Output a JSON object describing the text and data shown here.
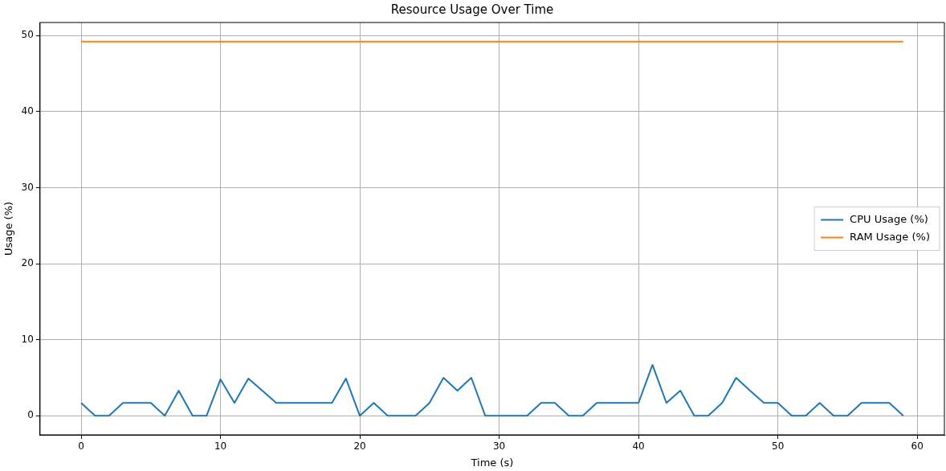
{
  "chart_data": {
    "type": "line",
    "title": "Resource Usage Over Time",
    "xlabel": "Time (s)",
    "ylabel": "Usage (%)",
    "x": [
      0,
      1,
      2,
      3,
      4,
      5,
      6,
      7,
      8,
      9,
      10,
      11,
      12,
      13,
      14,
      15,
      16,
      17,
      18,
      19,
      20,
      21,
      22,
      23,
      24,
      25,
      26,
      27,
      28,
      29,
      30,
      31,
      32,
      33,
      34,
      35,
      36,
      37,
      38,
      39,
      40,
      41,
      42,
      43,
      44,
      45,
      46,
      47,
      48,
      49,
      50,
      51,
      52,
      53,
      54,
      55,
      56,
      57,
      58,
      59
    ],
    "series": [
      {
        "name": "CPU Usage (%)",
        "color": "#1f77b4",
        "values": [
          1.7,
          0,
          0,
          1.7,
          1.7,
          1.7,
          0,
          3.3,
          0,
          0,
          4.8,
          1.7,
          4.9,
          3.3,
          1.7,
          1.7,
          1.7,
          1.7,
          1.7,
          4.9,
          0,
          1.7,
          0,
          0,
          0,
          1.7,
          5.0,
          3.3,
          5.0,
          0,
          0,
          0,
          0,
          1.7,
          1.7,
          0,
          0,
          1.7,
          1.7,
          1.7,
          1.7,
          6.7,
          1.7,
          3.3,
          0,
          0,
          1.7,
          5.0,
          3.3,
          1.7,
          1.7,
          0,
          0,
          1.7,
          0,
          0,
          1.7,
          1.7,
          1.7,
          0
        ]
      },
      {
        "name": "RAM Usage (%)",
        "color": "#ff7f0e",
        "values": [
          49.2,
          49.2,
          49.2,
          49.2,
          49.2,
          49.2,
          49.2,
          49.2,
          49.2,
          49.2,
          49.2,
          49.2,
          49.2,
          49.2,
          49.2,
          49.2,
          49.2,
          49.2,
          49.2,
          49.2,
          49.2,
          49.2,
          49.2,
          49.2,
          49.2,
          49.2,
          49.2,
          49.2,
          49.2,
          49.2,
          49.2,
          49.2,
          49.2,
          49.2,
          49.2,
          49.2,
          49.2,
          49.2,
          49.2,
          49.2,
          49.2,
          49.2,
          49.2,
          49.2,
          49.2,
          49.2,
          49.2,
          49.2,
          49.2,
          49.2,
          49.2,
          49.2,
          49.2,
          49.2,
          49.2,
          49.2,
          49.2,
          49.2,
          49.2,
          49.2
        ]
      }
    ],
    "xlim": [
      -2.95,
      61.95
    ],
    "ylim": [
      -2.5,
      51.7
    ],
    "xticks": [
      0,
      10,
      20,
      30,
      40,
      50,
      60
    ],
    "yticks": [
      0,
      10,
      20,
      30,
      40,
      50
    ],
    "grid": true,
    "legend": "right",
    "marker": "none",
    "line_style": "solid"
  }
}
